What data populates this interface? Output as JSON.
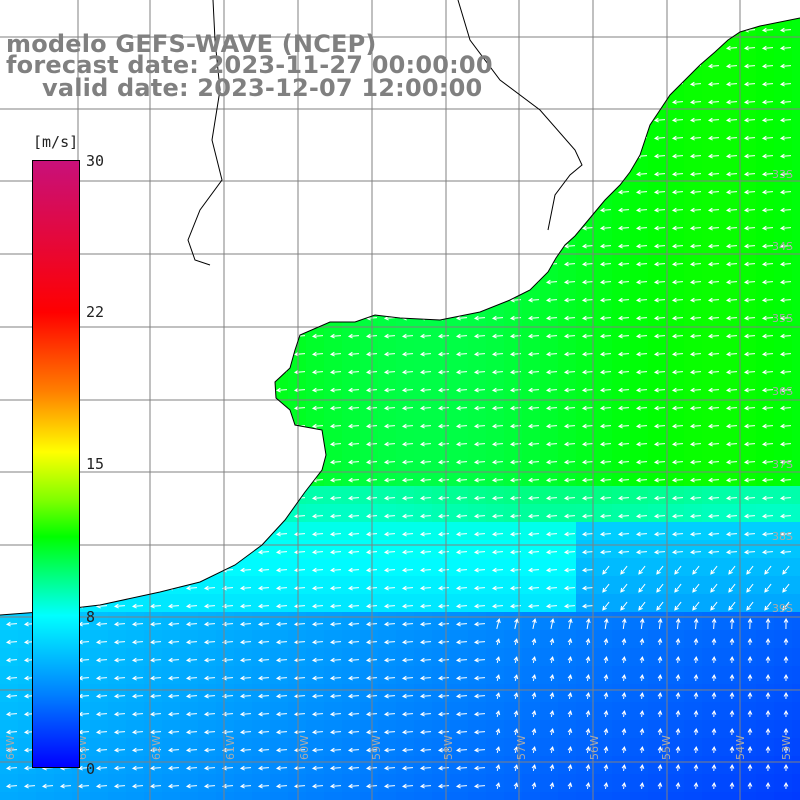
{
  "title": {
    "model": "modelo GEFS-WAVE (NCEP)",
    "forecast": "forecast date: 2023-11-27 00:00:00",
    "valid": "valid date: 2023-12-07 12:00:00"
  },
  "colorbar": {
    "unit": "[m/s]",
    "ticks": [
      "30",
      "22",
      "15",
      "8",
      "0"
    ],
    "colors": [
      "#c8107a",
      "#ff0000",
      "#ff7f00",
      "#ffff00",
      "#7fff00",
      "#00ff00",
      "#00ffff",
      "#0080ff",
      "#0000ff"
    ]
  },
  "map": {
    "variable": "wind speed and direction",
    "land_color": "#ffffff",
    "grid_color": "#808080",
    "coast_color": "#000000",
    "arrow_color": "#ffffff",
    "lat_labels": [
      "39S",
      "38S",
      "37S",
      "36S",
      "35S",
      "34S",
      "33S"
    ],
    "lon_labels": [
      "64W",
      "63W",
      "62W",
      "61W",
      "60W",
      "59W",
      "58W",
      "57W",
      "56W",
      "55W",
      "54W",
      "53W"
    ]
  }
}
